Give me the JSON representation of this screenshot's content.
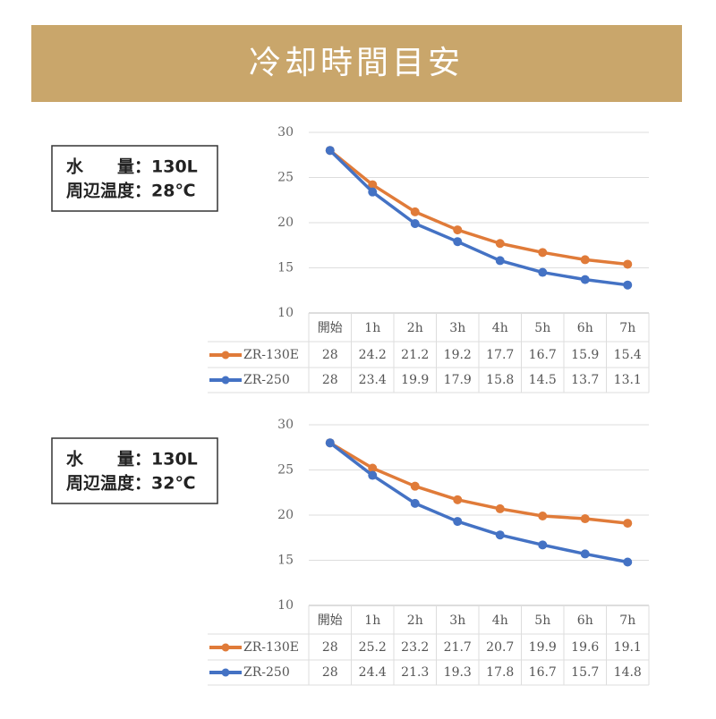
{
  "header": {
    "title": "冷却時間目安"
  },
  "chart_data": [
    {
      "type": "line",
      "note": [
        "水　　量：130L",
        "周辺温度：28℃"
      ],
      "categories": [
        "開始",
        "1h",
        "2h",
        "3h",
        "4h",
        "5h",
        "6h",
        "7h"
      ],
      "series": [
        {
          "name": "ZR-130E",
          "color": "#e07b39",
          "values": [
            28,
            24.2,
            21.2,
            19.2,
            17.7,
            16.7,
            15.9,
            15.4
          ]
        },
        {
          "name": "ZR-250",
          "color": "#4472c4",
          "values": [
            28,
            23.4,
            19.9,
            17.9,
            15.8,
            14.5,
            13.7,
            13.1
          ]
        }
      ],
      "ylim": [
        10,
        30
      ],
      "yticks": [
        10,
        15,
        20,
        25,
        30
      ],
      "grid": true
    },
    {
      "type": "line",
      "note": [
        "水　　量：130L",
        "周辺温度：32℃"
      ],
      "categories": [
        "開始",
        "1h",
        "2h",
        "3h",
        "4h",
        "5h",
        "6h",
        "7h"
      ],
      "series": [
        {
          "name": "ZR-130E",
          "color": "#e07b39",
          "values": [
            28,
            25.2,
            23.2,
            21.7,
            20.7,
            19.9,
            19.6,
            19.1
          ]
        },
        {
          "name": "ZR-250",
          "color": "#4472c4",
          "values": [
            28,
            24.4,
            21.3,
            19.3,
            17.8,
            16.7,
            15.7,
            14.8
          ]
        }
      ],
      "ylim": [
        10,
        30
      ],
      "yticks": [
        10,
        15,
        20,
        25,
        30
      ],
      "grid": true
    }
  ]
}
